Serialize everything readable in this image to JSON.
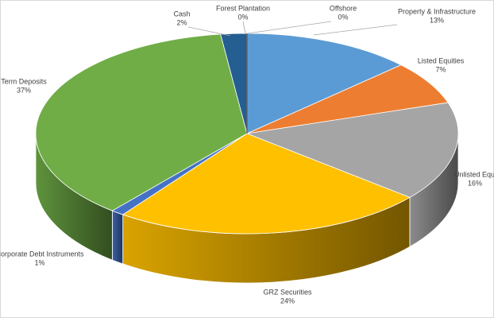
{
  "chart_data": {
    "type": "pie",
    "categories": [
      "Property & Infrastructure",
      "Listed Equities",
      "Unlisted Equi",
      "GRZ Securities",
      "Corporate Debt Instruments",
      "Term Deposits",
      "Cash",
      "Forest Plantation",
      "Offshore"
    ],
    "values": [
      13,
      7,
      16,
      24,
      1,
      37,
      2,
      0,
      0
    ],
    "value_labels": [
      "13%",
      "7%",
      "16%",
      "24%",
      "1%",
      "37%",
      "2%",
      "0%",
      "0%"
    ],
    "colors": [
      "#5b9bd5",
      "#ed7d31",
      "#a5a5a5",
      "#ffc000",
      "#4472c4",
      "#70ad47",
      "#255e91",
      "#9e480e",
      "#636363"
    ]
  }
}
